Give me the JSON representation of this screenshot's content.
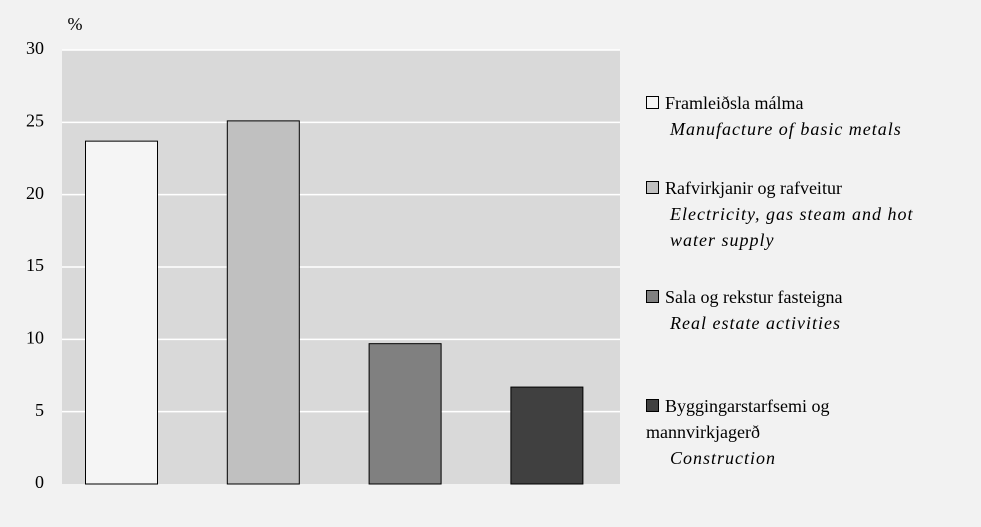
{
  "chart_data": {
    "type": "bar",
    "y_label": "%",
    "series": [
      {
        "name": "Framleiðsla málma",
        "name_en": "Manufacture of basic metals",
        "color": "#f5f5f5",
        "values": [
          23.7
        ]
      },
      {
        "name": "Rafvirkjanir og rafveitur",
        "name_en": "Electricity, gas steam and hot water supply",
        "color": "#c0c0c0",
        "values": [
          25.1
        ]
      },
      {
        "name": "Sala og rekstur fasteigna",
        "name_en": "Real estate activities",
        "color": "#808080",
        "values": [
          9.7
        ]
      },
      {
        "name": "Byggingarstarfsemi og mannvirkjagerð",
        "name_en": "Construction",
        "color": "#404040",
        "values": [
          6.7
        ]
      }
    ],
    "ylim": [
      0,
      30
    ],
    "yticks": [
      0,
      5,
      10,
      15,
      20,
      25,
      30
    ],
    "grid": true
  }
}
